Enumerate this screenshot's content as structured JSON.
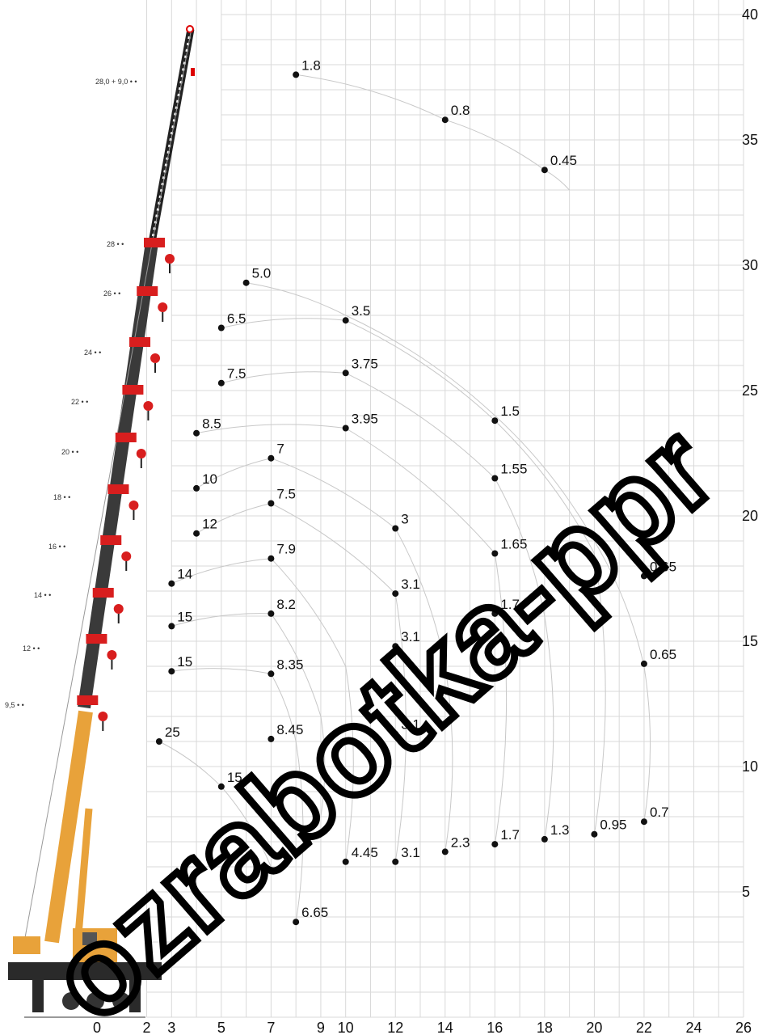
{
  "chart_data": {
    "type": "scatter",
    "title": "",
    "xlabel": "",
    "ylabel": "",
    "xlim": [
      -0.5,
      26
    ],
    "ylim": [
      0,
      41
    ],
    "x_ticks": [
      "0",
      "2",
      "3",
      "5",
      "7",
      "9",
      "10",
      "12",
      "14",
      "16",
      "18",
      "20",
      "22",
      "24",
      "26"
    ],
    "x_tick_values": [
      0,
      2,
      3,
      5,
      7,
      9,
      10,
      12,
      14,
      16,
      18,
      20,
      22,
      24,
      26
    ],
    "y_ticks": [
      "5",
      "10",
      "15",
      "20",
      "25",
      "30",
      "35",
      "40"
    ],
    "y_tick_values": [
      5,
      10,
      15,
      20,
      25,
      30,
      35,
      40
    ],
    "grid": true,
    "points": [
      {
        "x": 8,
        "y": 37.6,
        "label": "1.8"
      },
      {
        "x": 14,
        "y": 35.8,
        "label": "0.8"
      },
      {
        "x": 18,
        "y": 33.8,
        "label": "0.45"
      },
      {
        "x": 6,
        "y": 29.3,
        "label": "5.0"
      },
      {
        "x": 5,
        "y": 27.5,
        "label": "6.5"
      },
      {
        "x": 10,
        "y": 27.8,
        "label": "3.5"
      },
      {
        "x": 5,
        "y": 25.3,
        "label": "7.5"
      },
      {
        "x": 10,
        "y": 25.7,
        "label": "3.75"
      },
      {
        "x": 16,
        "y": 23.8,
        "label": "1.5"
      },
      {
        "x": 4,
        "y": 23.3,
        "label": "8.5"
      },
      {
        "x": 10,
        "y": 23.5,
        "label": "3.95"
      },
      {
        "x": 7,
        "y": 22.3,
        "label": "7"
      },
      {
        "x": 4,
        "y": 21.1,
        "label": "10"
      },
      {
        "x": 16,
        "y": 21.5,
        "label": "1.55"
      },
      {
        "x": 7,
        "y": 20.5,
        "label": "7.5"
      },
      {
        "x": 4,
        "y": 19.3,
        "label": "12"
      },
      {
        "x": 12,
        "y": 19.5,
        "label": "3"
      },
      {
        "x": 16,
        "y": 18.5,
        "label": "1.65"
      },
      {
        "x": 7,
        "y": 18.3,
        "label": "7.9"
      },
      {
        "x": 3,
        "y": 17.3,
        "label": "14"
      },
      {
        "x": 12,
        "y": 16.9,
        "label": "3.1"
      },
      {
        "x": 22,
        "y": 17.6,
        "label": "0.65"
      },
      {
        "x": 7,
        "y": 16.1,
        "label": "8.2"
      },
      {
        "x": 16,
        "y": 16.1,
        "label": "1.7"
      },
      {
        "x": 3,
        "y": 15.6,
        "label": "15"
      },
      {
        "x": 12,
        "y": 14.8,
        "label": "3.1"
      },
      {
        "x": 3,
        "y": 13.8,
        "label": "15"
      },
      {
        "x": 7,
        "y": 13.7,
        "label": "8.35"
      },
      {
        "x": 22,
        "y": 14.1,
        "label": "0.65"
      },
      {
        "x": 2.5,
        "y": 11.0,
        "label": "25"
      },
      {
        "x": 7,
        "y": 11.1,
        "label": "8.45"
      },
      {
        "x": 12,
        "y": 11.3,
        "label": "3.1"
      },
      {
        "x": 5,
        "y": 9.2,
        "label": "15"
      },
      {
        "x": 22,
        "y": 7.8,
        "label": "0.7"
      },
      {
        "x": 20,
        "y": 7.3,
        "label": "0.95"
      },
      {
        "x": 18,
        "y": 7.1,
        "label": "1.3"
      },
      {
        "x": 16,
        "y": 6.9,
        "label": "1.7"
      },
      {
        "x": 14,
        "y": 6.6,
        "label": "2.3"
      },
      {
        "x": 12,
        "y": 6.2,
        "label": "3.1"
      },
      {
        "x": 10,
        "y": 6.2,
        "label": "4.45"
      },
      {
        "x": 8,
        "y": 3.8,
        "label": "6.65"
      }
    ],
    "curves": [
      [
        [
          8,
          37.6
        ],
        [
          14,
          35.8
        ],
        [
          18,
          33.8
        ],
        [
          19,
          33
        ]
      ],
      [
        [
          6,
          29.3
        ],
        [
          10,
          28
        ],
        [
          16,
          24
        ],
        [
          20,
          19
        ],
        [
          22,
          14
        ],
        [
          22,
          7.8
        ]
      ],
      [
        [
          5,
          27.5
        ],
        [
          10,
          27.8
        ],
        [
          16,
          23.8
        ],
        [
          20,
          18.5
        ],
        [
          20,
          7.3
        ]
      ],
      [
        [
          5,
          25.3
        ],
        [
          10,
          25.7
        ],
        [
          16,
          21.5
        ],
        [
          18,
          16
        ],
        [
          18,
          7.1
        ]
      ],
      [
        [
          4,
          23.3
        ],
        [
          10,
          23.5
        ],
        [
          16,
          18.5
        ],
        [
          16,
          6.9
        ]
      ],
      [
        [
          4,
          21.1
        ],
        [
          7,
          22.3
        ],
        [
          12,
          19.5
        ],
        [
          14,
          14
        ],
        [
          14,
          6.6
        ]
      ],
      [
        [
          4,
          19.3
        ],
        [
          7,
          20.5
        ],
        [
          12,
          16.9
        ],
        [
          12,
          6.2
        ]
      ],
      [
        [
          3,
          17.3
        ],
        [
          7,
          18.3
        ],
        [
          10,
          14
        ],
        [
          10,
          6.2
        ]
      ],
      [
        [
          3,
          15.6
        ],
        [
          7,
          16.1
        ],
        [
          9,
          12
        ],
        [
          9,
          8
        ]
      ],
      [
        [
          3,
          13.8
        ],
        [
          7,
          13.7
        ],
        [
          8,
          11
        ],
        [
          8,
          3.8
        ]
      ],
      [
        [
          2.5,
          11.0
        ],
        [
          5,
          9.2
        ],
        [
          7,
          6
        ]
      ]
    ],
    "boom_lengths": [
      "28,0 + 9,0",
      "28",
      "26",
      "24",
      "22",
      "20",
      "18",
      "16",
      "14",
      "12",
      "9,5"
    ],
    "watermark": "ozrabotka-ppr"
  }
}
